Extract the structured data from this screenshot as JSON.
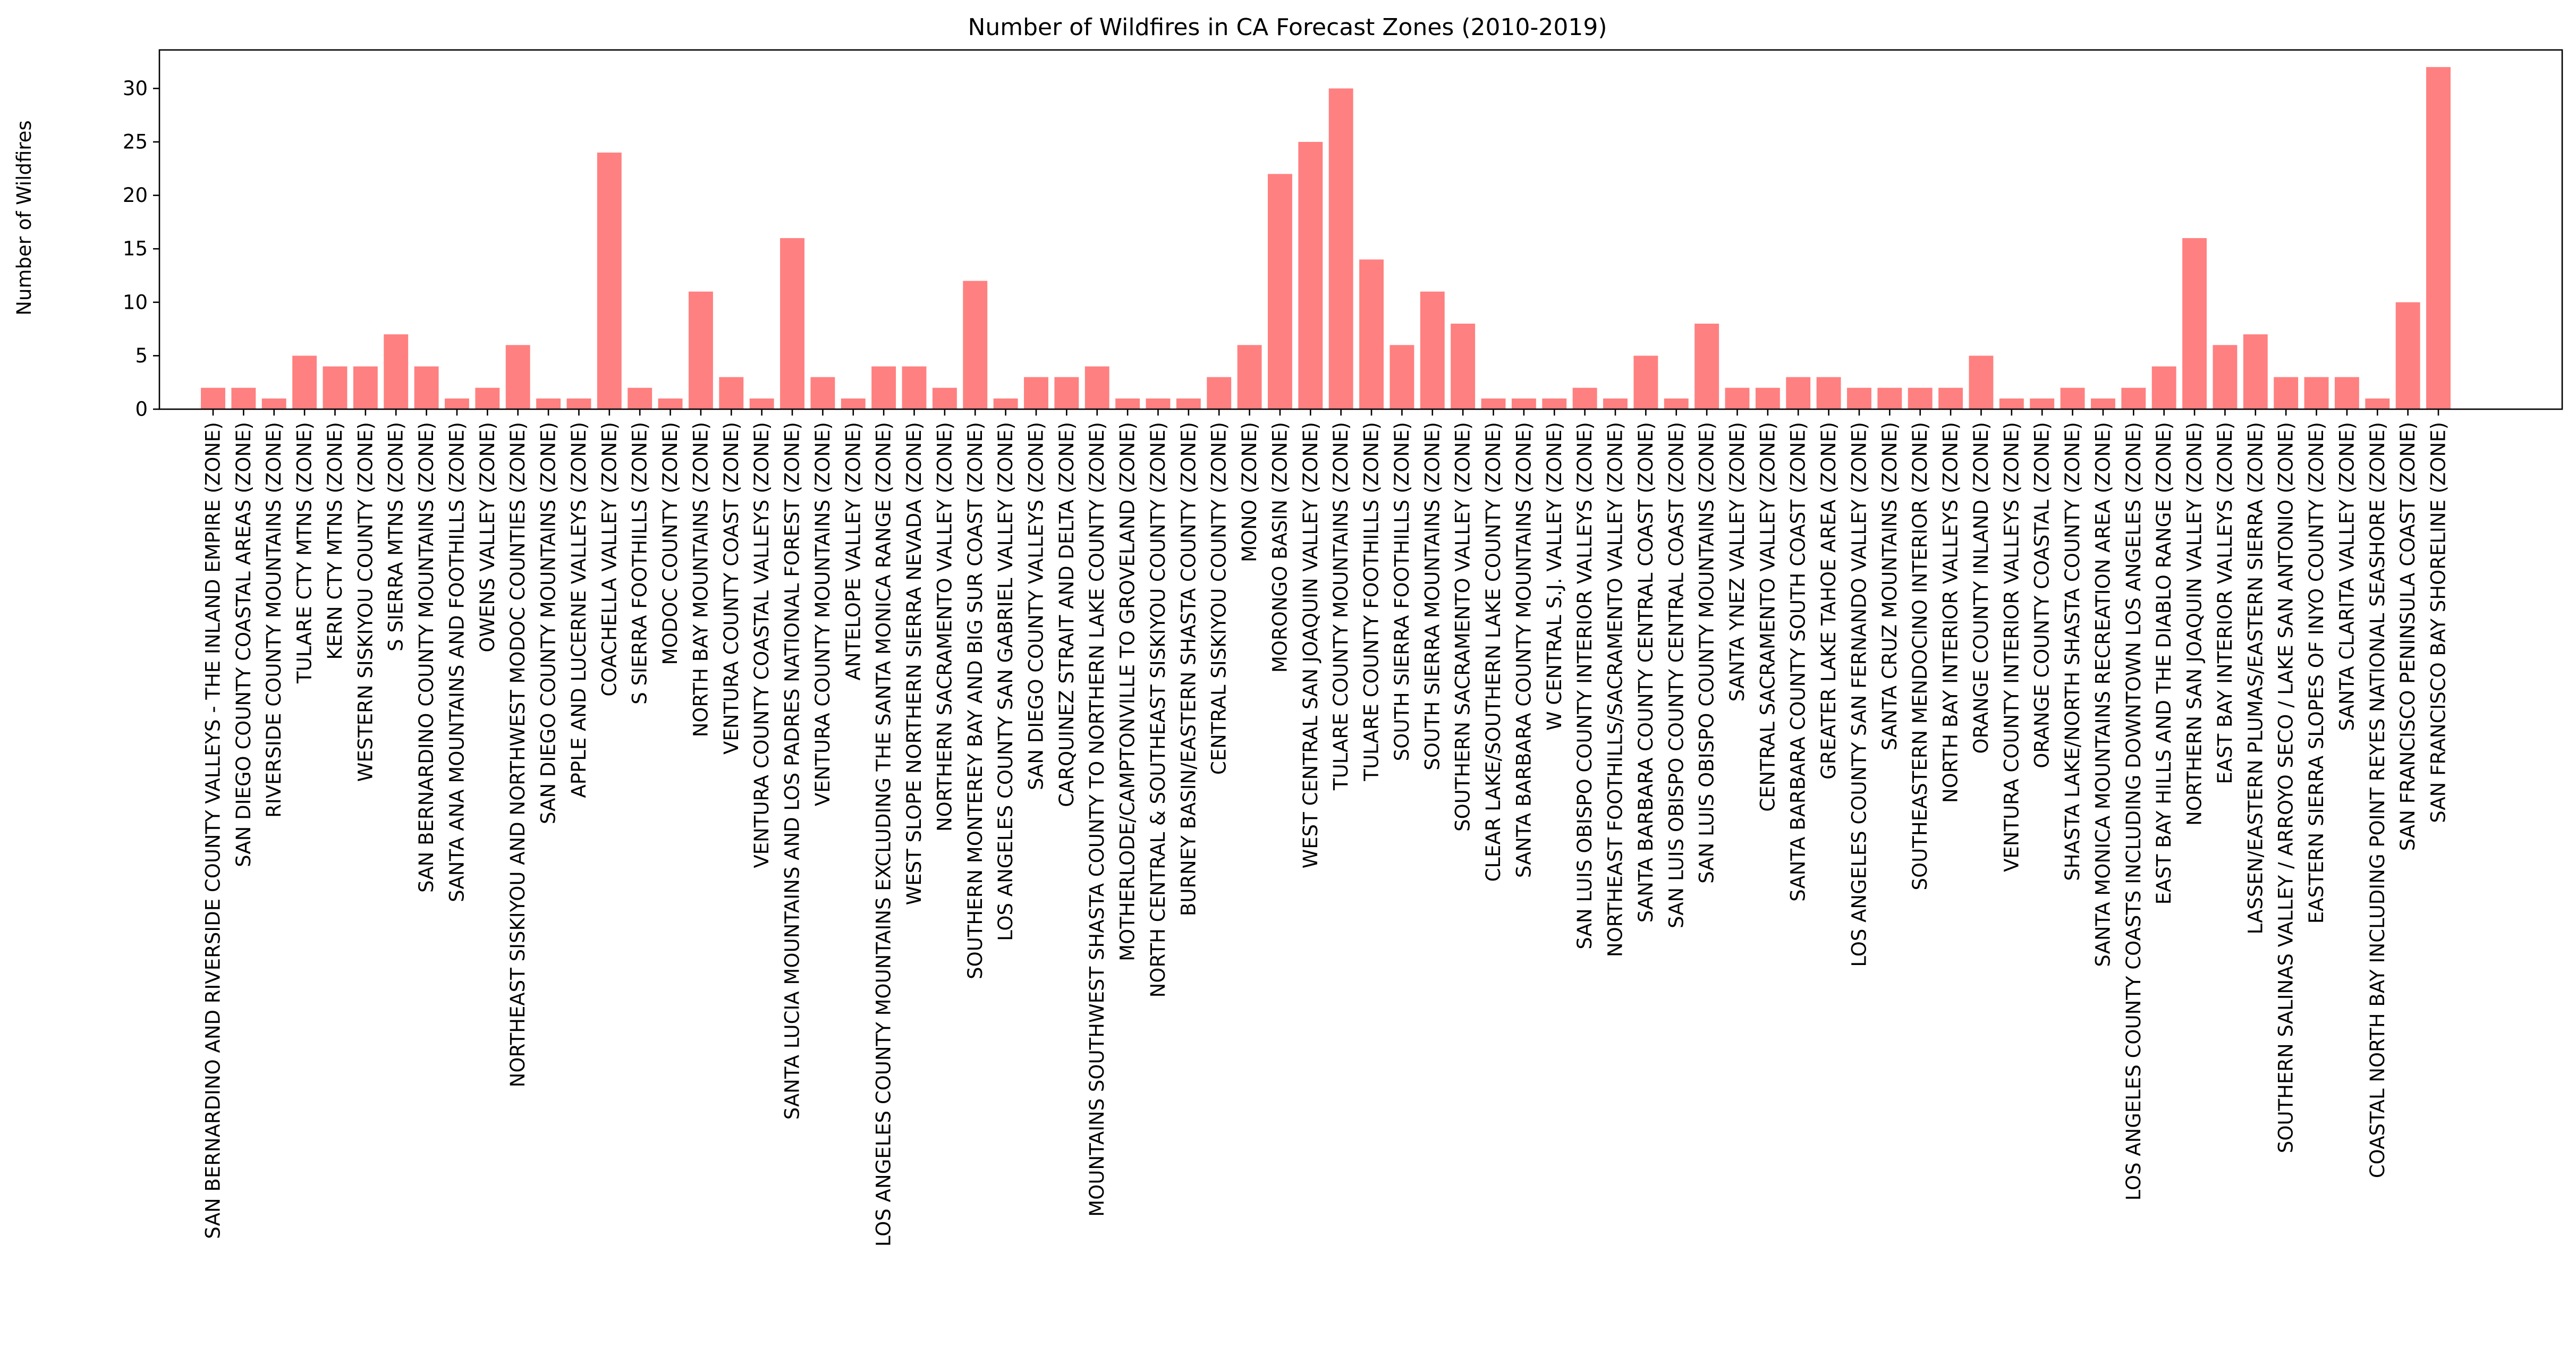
{
  "chart_data": {
    "type": "bar",
    "title": "Number of Wildfires in CA Forecast Zones (2010-2019)",
    "xlabel": "",
    "ylabel": "Number of Wildfires",
    "ylim": [
      0,
      33.6
    ],
    "yticks": [
      0,
      5,
      10,
      15,
      20,
      25,
      30
    ],
    "grid": false,
    "bar_color": "#ff8080",
    "categories": [
      "SAN BERNARDINO AND RIVERSIDE COUNTY VALLEYS - THE INLAND EMPIRE (ZONE)",
      "SAN DIEGO COUNTY COASTAL AREAS (ZONE)",
      "RIVERSIDE COUNTY MOUNTAINS (ZONE)",
      "TULARE CTY MTNS (ZONE)",
      "KERN CTY MTNS (ZONE)",
      "WESTERN SISKIYOU COUNTY (ZONE)",
      "S SIERRA MTNS (ZONE)",
      "SAN BERNARDINO COUNTY MOUNTAINS (ZONE)",
      "SANTA ANA MOUNTAINS AND FOOTHILLS (ZONE)",
      "OWENS VALLEY (ZONE)",
      "NORTHEAST SISKIYOU AND NORTHWEST MODOC COUNTIES (ZONE)",
      "SAN DIEGO COUNTY MOUNTAINS (ZONE)",
      "APPLE AND LUCERNE VALLEYS (ZONE)",
      "COACHELLA VALLEY (ZONE)",
      "S SIERRA FOOTHILLS (ZONE)",
      "MODOC COUNTY (ZONE)",
      "NORTH BAY MOUNTAINS (ZONE)",
      "VENTURA COUNTY COAST (ZONE)",
      "VENTURA COUNTY COASTAL VALLEYS (ZONE)",
      "SANTA LUCIA MOUNTAINS AND LOS PADRES NATIONAL FOREST (ZONE)",
      "VENTURA COUNTY MOUNTAINS (ZONE)",
      "ANTELOPE VALLEY (ZONE)",
      "LOS ANGELES COUNTY MOUNTAINS EXCLUDING THE SANTA MONICA RANGE (ZONE)",
      "WEST SLOPE NORTHERN SIERRA NEVADA (ZONE)",
      "NORTHERN SACRAMENTO VALLEY (ZONE)",
      "SOUTHERN MONTEREY BAY AND BIG SUR COAST (ZONE)",
      "LOS ANGELES COUNTY SAN GABRIEL VALLEY (ZONE)",
      "SAN DIEGO COUNTY VALLEYS (ZONE)",
      "CARQUINEZ STRAIT AND DELTA (ZONE)",
      "MOUNTAINS SOUTHWEST SHASTA COUNTY TO NORTHERN LAKE COUNTY (ZONE)",
      "MOTHERLODE/CAMPTONVILLE TO GROVELAND (ZONE)",
      "NORTH CENTRAL & SOUTHEAST SISKIYOU COUNTY (ZONE)",
      "BURNEY BASIN/EASTERN SHASTA COUNTY (ZONE)",
      "CENTRAL SISKIYOU COUNTY (ZONE)",
      "MONO (ZONE)",
      "MORONGO BASIN (ZONE)",
      "WEST CENTRAL SAN JOAQUIN VALLEY (ZONE)",
      "TULARE COUNTY MOUNTAINS (ZONE)",
      "TULARE COUNTY FOOTHILLS (ZONE)",
      "SOUTH SIERRA FOOTHILLS (ZONE)",
      "SOUTH SIERRA MOUNTAINS (ZONE)",
      "SOUTHERN SACRAMENTO VALLEY (ZONE)",
      "CLEAR LAKE/SOUTHERN LAKE COUNTY (ZONE)",
      "SANTA BARBARA COUNTY MOUNTAINS (ZONE)",
      "W CENTRAL S.J. VALLEY (ZONE)",
      "SAN LUIS OBISPO COUNTY INTERIOR VALLEYS (ZONE)",
      "NORTHEAST FOOTHILLS/SACRAMENTO VALLEY (ZONE)",
      "SANTA BARBARA COUNTY CENTRAL COAST (ZONE)",
      "SAN LUIS OBISPO COUNTY CENTRAL COAST (ZONE)",
      "SAN LUIS OBISPO COUNTY MOUNTAINS (ZONE)",
      "SANTA YNEZ VALLEY (ZONE)",
      "CENTRAL SACRAMENTO VALLEY (ZONE)",
      "SANTA BARBARA COUNTY SOUTH COAST (ZONE)",
      "GREATER LAKE TAHOE AREA (ZONE)",
      "LOS ANGELES COUNTY SAN FERNANDO VALLEY (ZONE)",
      "SANTA CRUZ MOUNTAINS (ZONE)",
      "SOUTHEASTERN MENDOCINO INTERIOR (ZONE)",
      "NORTH BAY INTERIOR VALLEYS (ZONE)",
      "ORANGE COUNTY INLAND (ZONE)",
      "VENTURA COUNTY INTERIOR VALLEYS (ZONE)",
      "ORANGE COUNTY COASTAL (ZONE)",
      "SHASTA LAKE/NORTH SHASTA COUNTY (ZONE)",
      "SANTA MONICA MOUNTAINS RECREATION AREA (ZONE)",
      "LOS ANGELES COUNTY COASTS INCLUDING DOWNTOWN LOS ANGELES (ZONE)",
      "EAST BAY HILLS AND THE DIABLO RANGE (ZONE)",
      "NORTHERN SAN JOAQUIN VALLEY (ZONE)",
      "EAST BAY INTERIOR VALLEYS (ZONE)",
      "LASSEN/EASTERN PLUMAS/EASTERN SIERRA (ZONE)",
      "SOUTHERN SALINAS VALLEY / ARROYO SECO / LAKE SAN ANTONIO (ZONE)",
      "EASTERN SIERRA SLOPES OF INYO COUNTY (ZONE)",
      "SANTA CLARITA VALLEY (ZONE)",
      "COASTAL NORTH BAY INCLUDING POINT REYES NATIONAL SEASHORE (ZONE)",
      "SAN FRANCISCO PENINSULA COAST (ZONE)",
      "SAN FRANCISCO BAY SHORELINE (ZONE)"
    ],
    "values": [
      2,
      2,
      1,
      5,
      4,
      4,
      7,
      4,
      1,
      2,
      6,
      1,
      1,
      24,
      2,
      1,
      11,
      3,
      1,
      16,
      3,
      1,
      4,
      4,
      2,
      12,
      1,
      3,
      3,
      4,
      1,
      1,
      1,
      3,
      6,
      22,
      25,
      30,
      14,
      6,
      11,
      8,
      1,
      1,
      1,
      2,
      1,
      5,
      1,
      8,
      2,
      2,
      3,
      3,
      2,
      2,
      2,
      2,
      5,
      1,
      1,
      2,
      1,
      2,
      4,
      16,
      6,
      7,
      3,
      3,
      3,
      1,
      10,
      32
    ]
  }
}
